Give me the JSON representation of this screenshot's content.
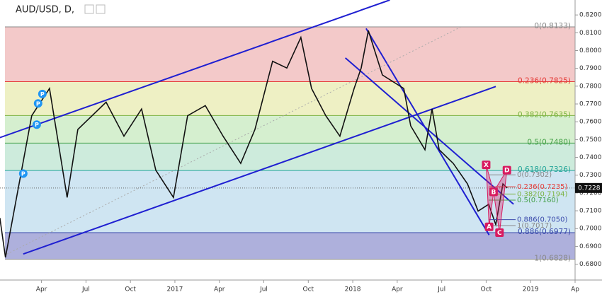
{
  "chart_data": {
    "type": "line",
    "title": "AUD/USD, D,",
    "color": "#111111",
    "x": [
      0.19,
      0.57,
      2.34,
      3.54,
      4.73,
      5.45,
      7.36,
      8.56,
      9.75,
      10.71,
      11.9,
      12.86,
      14.05,
      15.25,
      16.44,
      17.4,
      18.59,
      19.55,
      20.5,
      21.22,
      22.18,
      23.13,
      24.09,
      24.57,
      25.05,
      26.0,
      27.44,
      27.91,
      28.87,
      29.35,
      29.83,
      30.78,
      31.74,
      32.46,
      33.17,
      33.65,
      34.13,
      34.42
    ],
    "values": [
      0.706,
      0.6838,
      0.7634,
      0.7787,
      0.7175,
      0.7557,
      0.771,
      0.7519,
      0.7672,
      0.7328,
      0.7175,
      0.7634,
      0.7691,
      0.7519,
      0.7366,
      0.7557,
      0.794,
      0.7902,
      0.8074,
      0.7787,
      0.7634,
      0.7519,
      0.7787,
      0.7902,
      0.8112,
      0.7863,
      0.7787,
      0.7577,
      0.7443,
      0.7672,
      0.7443,
      0.7366,
      0.7251,
      0.7098,
      0.7137,
      0.7022,
      0.7251,
      0.7228
    ],
    "xlim": [
      0.2,
      39
    ],
    "xticks": [
      {
        "value": 3,
        "label": "Apr"
      },
      {
        "value": 6,
        "label": "Jul"
      },
      {
        "value": 9,
        "label": "Oct"
      },
      {
        "value": 12,
        "label": "2017"
      },
      {
        "value": 15,
        "label": "Apr"
      },
      {
        "value": 18,
        "label": "Jul"
      },
      {
        "value": 21,
        "label": "Oct"
      },
      {
        "value": 24,
        "label": "2018"
      },
      {
        "value": 27,
        "label": "Apr"
      },
      {
        "value": 30,
        "label": "Jul"
      },
      {
        "value": 33,
        "label": "Oct"
      },
      {
        "value": 36,
        "label": "2019"
      },
      {
        "value": 39,
        "label": "Ap"
      }
    ],
    "ylim": [
      0.6711,
      0.8284
    ],
    "yticks": [
      {
        "value": 0.68,
        "label": "0.6800"
      },
      {
        "value": 0.69,
        "label": "0.6900"
      },
      {
        "value": 0.7,
        "label": "0.7000"
      },
      {
        "value": 0.71,
        "label": "0.7100"
      },
      {
        "value": 0.72,
        "label": "0.7200"
      },
      {
        "value": 0.73,
        "label": "0.7300"
      },
      {
        "value": 0.74,
        "label": "0.7400"
      },
      {
        "value": 0.75,
        "label": "0.7500"
      },
      {
        "value": 0.76,
        "label": "0.7600"
      },
      {
        "value": 0.77,
        "label": "0.7700"
      },
      {
        "value": 0.78,
        "label": "0.7800"
      },
      {
        "value": 0.79,
        "label": "0.7900"
      },
      {
        "value": 0.8,
        "label": "0.8000"
      },
      {
        "value": 0.81,
        "label": "0.8100"
      },
      {
        "value": 0.82,
        "label": "0.8200"
      }
    ],
    "last_price": 0.7228,
    "fib_levels": [
      {
        "value": 0.8133,
        "label": "0(0.8133)",
        "color": "#888888",
        "band": "#f3c9c9"
      },
      {
        "value": 0.7825,
        "label": "0.236(0.7825)",
        "color": "#e53935",
        "band": "#eef0c4"
      },
      {
        "value": 0.7635,
        "label": "0.382(0.7635)",
        "color": "#7cb342",
        "band": "#d5efcf"
      },
      {
        "value": 0.748,
        "label": "0.5(0.7480)",
        "color": "#43a047",
        "band": "#cdebdc"
      },
      {
        "value": 0.7326,
        "label": "0.618(0.7326)",
        "color": "#26a69a",
        "band": "#cfe5f2"
      },
      {
        "value": 0.6977,
        "label": "0.886(0.6977)",
        "color": "#3949ab",
        "band": "#aeb0dc"
      },
      {
        "value": 0.6828,
        "label": "1(0.6828)",
        "color": "#888888",
        "band": null
      }
    ],
    "small_fib_levels": [
      {
        "value": 0.7302,
        "label": "0(0.7302)",
        "color": "#888888"
      },
      {
        "value": 0.7235,
        "label": "0.236(0.7235)",
        "color": "#e53935"
      },
      {
        "value": 0.7194,
        "label": "0.382(0.7194)",
        "color": "#7cb342"
      },
      {
        "value": 0.716,
        "label": "0.5(0.7160)",
        "color": "#43a047"
      },
      {
        "value": 0.705,
        "label": "0.886(0.7050)",
        "color": "#3949ab"
      },
      {
        "value": 0.7017,
        "label": "1(0.7017)",
        "color": "#888888"
      }
    ],
    "trendlines": [
      {
        "x": [
          0.19,
          26.5
        ],
        "y": [
          0.7511,
          0.8284
        ],
        "color": "#1f1fd1"
      },
      {
        "x": [
          1.77,
          33.65
        ],
        "y": [
          0.6857,
          0.7798
        ],
        "color": "#1f1fd1"
      },
      {
        "x": [
          24.9,
          33.2
        ],
        "y": [
          0.8124,
          0.6964
        ],
        "color": "#1f1fd1"
      },
      {
        "x": [
          23.5,
          34.85
        ],
        "y": [
          0.7959,
          0.7137
        ],
        "color": "#1f1fd1"
      },
      {
        "x": [
          0.67,
          31.26
        ],
        "y": [
          0.6857,
          0.8131
        ],
        "color": "#aaaaaa",
        "dashed": true
      }
    ],
    "pattern": {
      "color": "#d81b60",
      "points": [
        {
          "label": "X",
          "x": 33.0,
          "y": 0.7358
        },
        {
          "label": "A",
          "x": 33.2,
          "y": 0.701
        },
        {
          "label": "B",
          "x": 33.5,
          "y": 0.7206
        },
        {
          "label": "C",
          "x": 33.9,
          "y": 0.6977
        },
        {
          "label": "D",
          "x": 34.4,
          "y": 0.7328
        }
      ]
    },
    "markers": [
      {
        "label": "P",
        "x": 1.77,
        "y": 0.7309
      },
      {
        "label": "P",
        "x": 2.68,
        "y": 0.7584
      },
      {
        "label": "P",
        "x": 2.77,
        "y": 0.7703
      },
      {
        "label": "P",
        "x": 3.06,
        "y": 0.7756
      }
    ]
  }
}
